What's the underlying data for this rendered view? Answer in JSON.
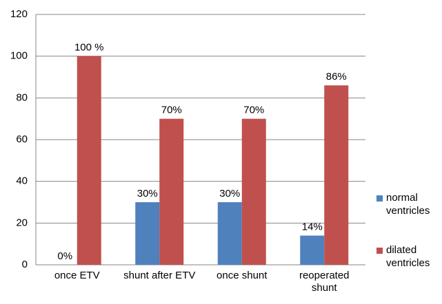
{
  "chart_data": {
    "type": "bar",
    "categories": [
      "once ETV",
      "shunt after ETV",
      "once shunt",
      "reoperated shunt"
    ],
    "series": [
      {
        "name": "normal ventricles",
        "color": "#4f81bd",
        "values": [
          0,
          30,
          30,
          14
        ],
        "value_labels": [
          "0%",
          "30%",
          "30%",
          "14%"
        ]
      },
      {
        "name": "dilated ventricles",
        "color": "#c0504d",
        "values": [
          100,
          70,
          70,
          86
        ],
        "value_labels": [
          "100 %",
          "70%",
          "70%",
          "86%"
        ]
      }
    ],
    "ylim": [
      0,
      120
    ],
    "yticks": [
      0,
      20,
      40,
      60,
      80,
      100,
      120
    ],
    "grid": true,
    "legend": "right"
  }
}
